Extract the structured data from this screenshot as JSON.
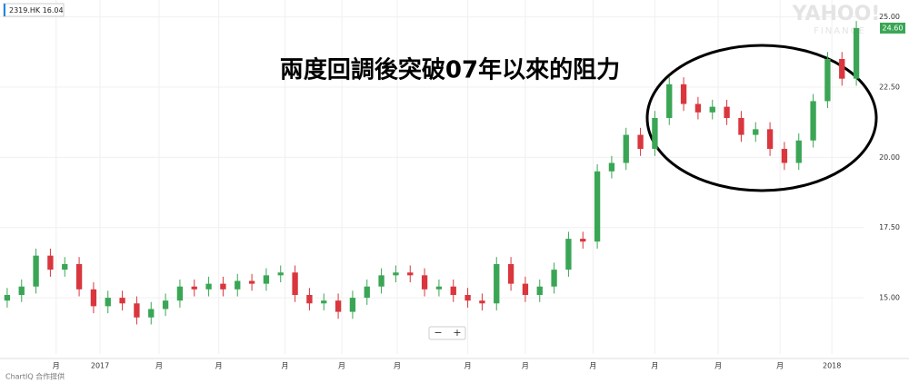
{
  "chart_data": {
    "type": "candlestick",
    "symbol": "2319.HK 16.04",
    "annotation": "兩度回調後突破07年以來的阻力",
    "watermark": "YAHOO!",
    "watermark_sub": "FINANCE",
    "credit": "ChartIQ 合作提供",
    "zoom_out": "−",
    "zoom_in": "+",
    "up_color": "#3aa655",
    "down_color": "#d9363e",
    "grid": true,
    "last_price": {
      "value": 24.6,
      "label": "24.60"
    },
    "xlim": [
      -0.5,
      59.5
    ],
    "ylim": [
      13,
      25.6
    ],
    "yticks": [
      {
        "value": 15,
        "label": "15.00"
      },
      {
        "value": 17.5,
        "label": "17.50"
      },
      {
        "value": 20,
        "label": "20.00"
      },
      {
        "value": 22.5,
        "label": "22.50"
      },
      {
        "value": 25,
        "label": "25.00"
      }
    ],
    "xticks": [
      {
        "value": 3.4,
        "label": "月"
      },
      {
        "value": 6.45,
        "label": "2017"
      },
      {
        "value": 10.55,
        "label": "月"
      },
      {
        "value": 14.7,
        "label": "月"
      },
      {
        "value": 19.3,
        "label": "月"
      },
      {
        "value": 23.25,
        "label": "月"
      },
      {
        "value": 27.1,
        "label": "月"
      },
      {
        "value": 32,
        "label": "月"
      },
      {
        "value": 36,
        "label": "月"
      },
      {
        "value": 40.7,
        "label": "月"
      },
      {
        "value": 45,
        "label": "月"
      },
      {
        "value": 49.4,
        "label": "月"
      },
      {
        "value": 53.7,
        "label": "月"
      },
      {
        "value": 57.3,
        "label": "2018"
      }
    ],
    "open": [
      14.9,
      15.1,
      15.4,
      16.5,
      16.0,
      16.2,
      15.3,
      14.7,
      15.0,
      14.8,
      14.3,
      14.6,
      14.9,
      15.4,
      15.3,
      15.5,
      15.3,
      15.6,
      15.5,
      15.8,
      15.9,
      15.1,
      14.8,
      14.9,
      14.5,
      15.0,
      15.4,
      15.8,
      15.9,
      15.8,
      15.3,
      15.4,
      15.1,
      14.9,
      14.8,
      16.2,
      15.5,
      15.1,
      15.4,
      16.0,
      17.1,
      17.0,
      19.5,
      19.8,
      20.8,
      20.3,
      21.4,
      22.6,
      21.9,
      21.6,
      21.8,
      21.4,
      20.8,
      21.0,
      20.3,
      19.8,
      20.6,
      22.0,
      23.5,
      22.8
    ],
    "high": [
      15.35,
      15.65,
      16.75,
      16.75,
      16.45,
      16.45,
      15.55,
      15.25,
      15.25,
      15.05,
      14.85,
      15.15,
      15.65,
      15.65,
      15.75,
      15.75,
      15.85,
      15.85,
      16.05,
      16.15,
      16.15,
      15.35,
      15.15,
      15.15,
      15.25,
      15.65,
      16.05,
      16.15,
      16.15,
      16.05,
      15.65,
      15.65,
      15.35,
      15.15,
      16.45,
      16.45,
      15.75,
      15.65,
      16.25,
      17.35,
      17.35,
      19.75,
      20.05,
      21.05,
      21.05,
      21.65,
      22.85,
      22.85,
      22.15,
      22.05,
      22.05,
      21.65,
      21.25,
      21.25,
      20.55,
      20.85,
      22.25,
      23.75,
      23.75,
      24.85
    ],
    "low": [
      14.65,
      14.85,
      15.15,
      15.75,
      15.75,
      15.05,
      14.45,
      14.45,
      14.55,
      14.05,
      14.05,
      14.35,
      14.65,
      15.05,
      15.05,
      15.05,
      15.05,
      15.25,
      15.25,
      15.55,
      14.85,
      14.55,
      14.55,
      14.25,
      14.25,
      14.75,
      15.15,
      15.55,
      15.55,
      15.05,
      15.05,
      14.85,
      14.65,
      14.55,
      14.55,
      15.25,
      14.85,
      14.85,
      15.15,
      15.75,
      16.75,
      16.75,
      19.25,
      19.55,
      20.05,
      20.05,
      21.15,
      21.65,
      21.35,
      21.35,
      21.15,
      20.55,
      20.55,
      20.05,
      19.55,
      19.55,
      20.35,
      21.75,
      22.55,
      22.55
    ],
    "close": [
      15.1,
      15.4,
      16.5,
      16.0,
      16.2,
      15.3,
      14.7,
      15.0,
      14.8,
      14.3,
      14.6,
      14.9,
      15.4,
      15.3,
      15.5,
      15.3,
      15.6,
      15.5,
      15.8,
      15.9,
      15.1,
      14.8,
      14.9,
      14.5,
      15.0,
      15.4,
      15.8,
      15.9,
      15.8,
      15.3,
      15.4,
      15.1,
      14.9,
      14.8,
      16.2,
      15.5,
      15.1,
      15.4,
      16.0,
      17.1,
      17.0,
      19.5,
      19.8,
      20.8,
      20.3,
      21.4,
      22.6,
      21.9,
      21.6,
      21.8,
      21.4,
      20.8,
      21.0,
      20.3,
      19.8,
      20.6,
      22.0,
      23.5,
      22.8,
      24.6
    ]
  }
}
